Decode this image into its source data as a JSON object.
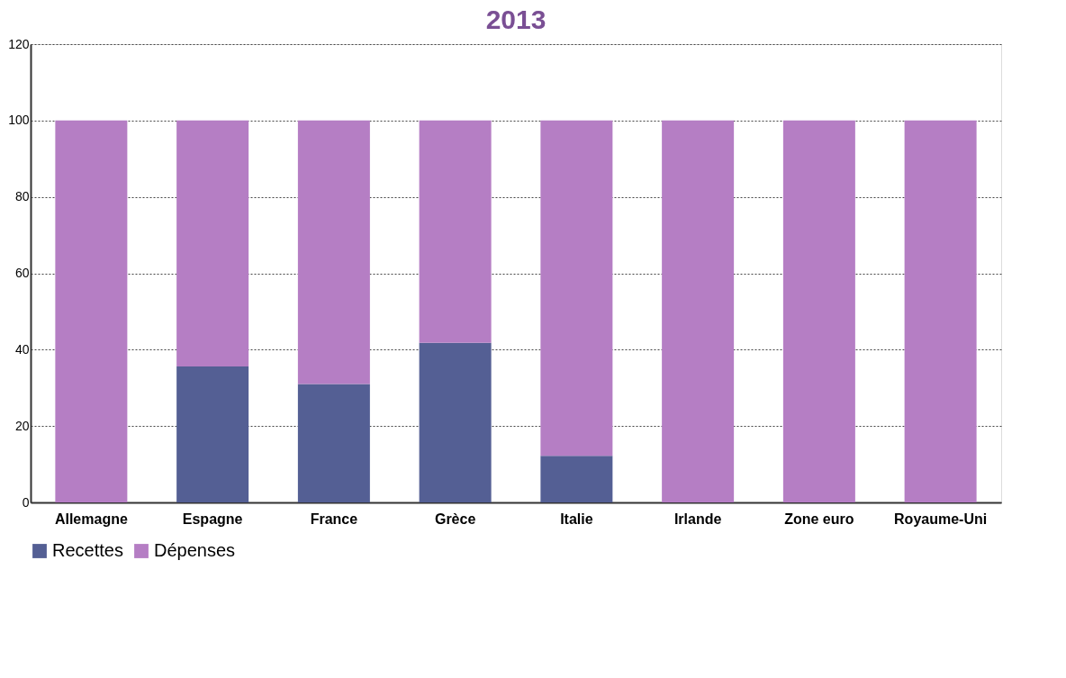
{
  "chart_data": {
    "type": "bar",
    "title": "2013",
    "stacked": true,
    "categories": [
      "Allemagne",
      "Espagne",
      "France",
      "Grèce",
      "Italie",
      "Irlande",
      "Zone euro",
      "Royaume-Uni"
    ],
    "series": [
      {
        "name": "Recettes",
        "color": "#545f94",
        "values": [
          0,
          35.6,
          31,
          41.8,
          12.2,
          0,
          0,
          0
        ]
      },
      {
        "name": "Dépenses",
        "color": "#b57ec4",
        "values": [
          100,
          64.4,
          69,
          58.2,
          87.8,
          100,
          100,
          100
        ]
      }
    ],
    "ylim": [
      0,
      120
    ],
    "yticks": [
      0,
      20,
      40,
      60,
      80,
      100,
      120
    ],
    "grid": "y",
    "legend": "bottom"
  }
}
